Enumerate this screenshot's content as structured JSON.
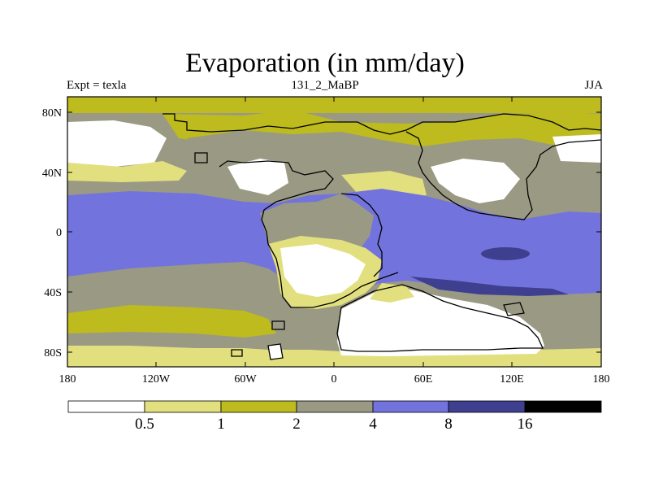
{
  "title": "Evaporation (in mm/day)",
  "subtitle_left": "Expt = texla",
  "subtitle_center": "131_2_MaBP",
  "subtitle_right": "JJA",
  "y_ticks": [
    "80N",
    "40N",
    "0",
    "40S",
    "80S"
  ],
  "x_ticks": [
    "180",
    "120W",
    "60W",
    "0",
    "60E",
    "120E",
    "180"
  ],
  "colorbar_labels": [
    "0.5",
    "1",
    "2",
    "4",
    "8",
    "16"
  ],
  "colors": {
    "c0": "#ffffff",
    "c1": "#e2e07e",
    "c2": "#bdbb1e",
    "c3": "#9a9a84",
    "c4": "#7373de",
    "c5": "#3f3f90",
    "c6": "#000000"
  }
}
